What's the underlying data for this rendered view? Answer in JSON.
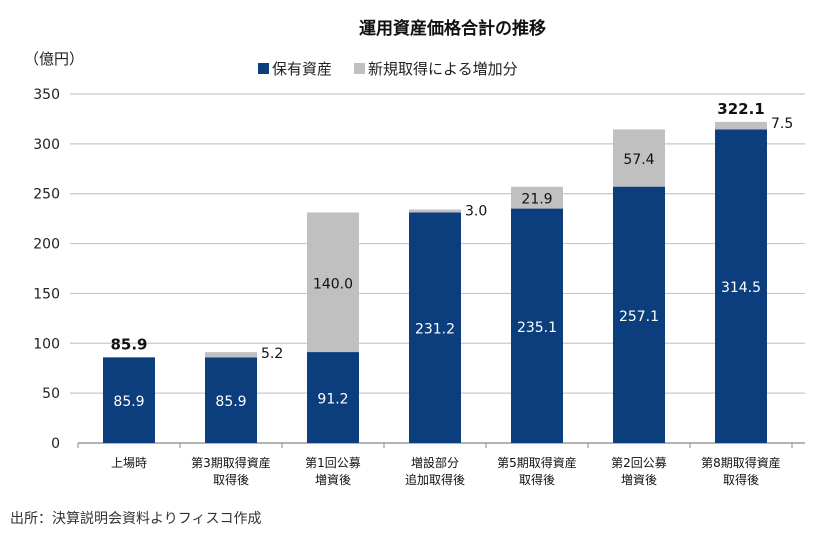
{
  "chart_data": {
    "type": "bar",
    "stacked": true,
    "title": "運用資産価格合計の推移",
    "ylabel": "（億円）",
    "ylim": [
      0,
      350
    ],
    "yticks": [
      0,
      50,
      100,
      150,
      200,
      250,
      300,
      350
    ],
    "grid": true,
    "legend_position": "top",
    "categories": [
      [
        "上場時"
      ],
      [
        "第3期取得資産",
        "取得後"
      ],
      [
        "第1回公募",
        "増資後"
      ],
      [
        "増設部分",
        "追加取得後"
      ],
      [
        "第5期取得資産",
        "取得後"
      ],
      [
        "第2回公募",
        "増資後"
      ],
      [
        "第8期取得資産",
        "取得後"
      ]
    ],
    "series": [
      {
        "name": "保有資産",
        "color": "#0c3d7c",
        "values": [
          85.9,
          85.9,
          91.2,
          231.2,
          235.1,
          257.1,
          314.5
        ]
      },
      {
        "name": "新規取得による増加分",
        "color": "#c0c0c0",
        "values": [
          null,
          5.2,
          140.0,
          3.0,
          21.9,
          57.4,
          7.5
        ]
      }
    ],
    "totals": [
      "85.9",
      null,
      null,
      null,
      null,
      null,
      "322.1"
    ]
  },
  "source": "出所：決算説明会資料よりフィスコ作成"
}
